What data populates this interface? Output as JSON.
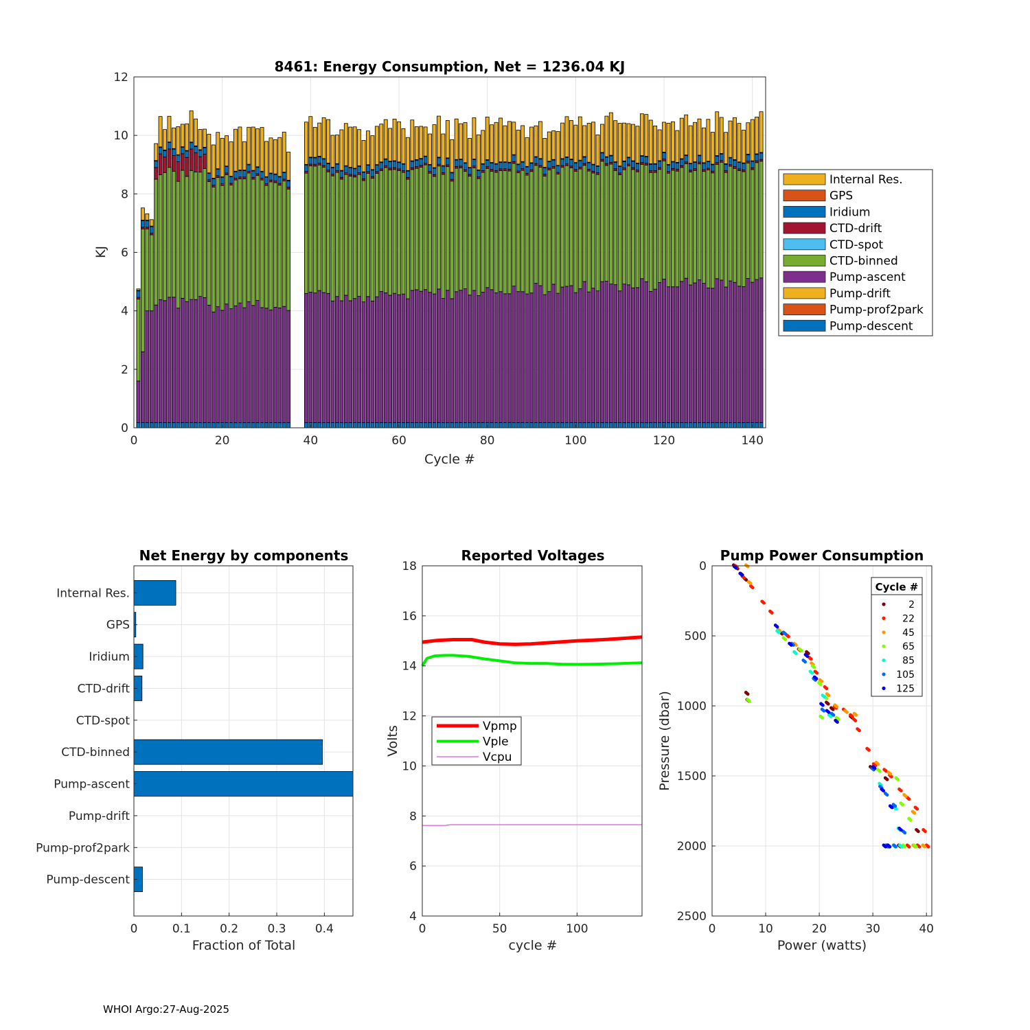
{
  "footer": "WHOI Argo:27-Aug-2025",
  "colors": {
    "internal_res": "#EDB120",
    "gps": "#D95319",
    "iridium": "#0072BD",
    "ctd_drift": "#A2142F",
    "ctd_spot": "#4DBEEE",
    "ctd_binned": "#77AC30",
    "pump_ascent": "#7E2F8E",
    "pump_drift": "#EDB120",
    "pump_prof2park": "#D95319",
    "pump_descent": "#0072BD",
    "vpmp": "#FF0000",
    "vple": "#00EE00",
    "vcpu": "#CC33CC",
    "hbar": "#0072BD"
  },
  "chart_data": [
    {
      "id": "energy",
      "type": "bar",
      "stacked": true,
      "title": "8461: Energy Consumption,  Net = 1236.04 KJ",
      "xlabel": "Cycle #",
      "ylabel": "KJ",
      "xlim": [
        0,
        143
      ],
      "ylim": [
        0,
        12
      ],
      "xticks": [
        0,
        20,
        40,
        60,
        80,
        100,
        120,
        140
      ],
      "yticks": [
        0,
        2,
        4,
        6,
        8,
        10,
        12
      ],
      "grid": true,
      "legend_position": "right",
      "legend": [
        "Internal Res.",
        "GPS",
        "Iridium",
        "CTD-drift",
        "CTD-spot",
        "CTD-binned",
        "Pump-ascent",
        "Pump-drift",
        "Pump-prof2park",
        "Pump-descent"
      ],
      "stack_order_bottom_to_top": [
        "Pump-descent",
        "Pump-prof2park",
        "Pump-drift",
        "Pump-ascent",
        "CTD-binned",
        "CTD-spot",
        "CTD-drift",
        "Iridium",
        "GPS",
        "Internal Res."
      ],
      "missing_cycles": [
        36,
        37,
        38
      ],
      "bar_value_overrides": {
        "1": {
          "total": 4.8,
          "ascent": 1.6,
          "ctd": 2.8
        },
        "2": {
          "total": 7.7,
          "ascent": 2.6,
          "ctd": 4.2
        },
        "3": {
          "total": 7.5,
          "ascent": 4.0,
          "ctd": 2.8
        },
        "4": {
          "total": 7.3,
          "ascent": 4.0,
          "ctd": 2.6
        },
        "5": {
          "total": 9.9,
          "ascent": 4.2,
          "ctd": 4.3,
          "drift": 0.4
        }
      },
      "totals_range": [
        9.3,
        10.6
      ],
      "ascent_range": [
        4.1,
        5.3
      ],
      "ctd_binned_range": [
        3.7,
        4.4
      ],
      "ctd_drift_cycles_5_16": [
        0.4,
        0.7
      ],
      "descent_per_cycle": 0.18
    },
    {
      "id": "components",
      "type": "bar",
      "orientation": "horizontal",
      "title": "Net Energy by components",
      "xlabel": "Fraction of Total",
      "xlim": [
        0,
        0.46
      ],
      "xticks": [
        0,
        0.1,
        0.2,
        0.3,
        0.4
      ],
      "xtick_labels": [
        "0",
        "0.1",
        "0.2",
        "0.3",
        "0.4"
      ],
      "grid": true,
      "categories": [
        "Internal Res.",
        "GPS",
        "Iridium",
        "CTD-drift",
        "CTD-spot",
        "CTD-binned",
        "Pump-ascent",
        "Pump-drift",
        "Pump-prof2park",
        "Pump-descent"
      ],
      "values": [
        0.088,
        0.004,
        0.019,
        0.017,
        0.0,
        0.396,
        0.472,
        0.0,
        0.0,
        0.018
      ]
    },
    {
      "id": "voltages",
      "type": "line",
      "title": "Reported Voltages",
      "xlabel": "cycle #",
      "ylabel": "Volts",
      "xlim": [
        0,
        142
      ],
      "ylim": [
        4,
        18
      ],
      "xticks": [
        0,
        50,
        100
      ],
      "yticks": [
        4,
        6,
        8,
        10,
        12,
        14,
        16,
        18
      ],
      "grid": true,
      "legend_position": "left",
      "series": [
        {
          "name": "Vpmp",
          "x": [
            0,
            10,
            20,
            32,
            40,
            50,
            60,
            70,
            80,
            90,
            100,
            110,
            120,
            130,
            142
          ],
          "y": [
            14.95,
            15.02,
            15.05,
            15.05,
            14.95,
            14.88,
            14.86,
            14.88,
            14.92,
            14.96,
            15.0,
            15.03,
            15.06,
            15.1,
            15.15
          ]
        },
        {
          "name": "Vple",
          "x": [
            0,
            3,
            8,
            15,
            20,
            30,
            40,
            50,
            60,
            70,
            80,
            90,
            100,
            110,
            120,
            130,
            142
          ],
          "y": [
            14.0,
            14.3,
            14.4,
            14.42,
            14.42,
            14.38,
            14.28,
            14.2,
            14.12,
            14.1,
            14.1,
            14.07,
            14.06,
            14.07,
            14.08,
            14.1,
            14.12
          ]
        },
        {
          "name": "Vcpu",
          "x": [
            0,
            15,
            18,
            60,
            100,
            142
          ],
          "y": [
            7.62,
            7.62,
            7.65,
            7.65,
            7.65,
            7.65
          ]
        }
      ]
    },
    {
      "id": "pump",
      "type": "scatter",
      "title": "Pump Power Consumption",
      "xlabel": "Power (watts)",
      "ylabel": "Pressure (dbar)",
      "xlim": [
        0,
        41
      ],
      "ylim": [
        0,
        2500
      ],
      "y_reversed": true,
      "xticks": [
        0,
        10,
        20,
        30,
        40
      ],
      "yticks": [
        0,
        500,
        1000,
        1500,
        2000,
        2500
      ],
      "grid": true,
      "legend_title": "Cycle #",
      "legend": [
        "2",
        "22",
        "45",
        "65",
        "85",
        "105",
        "125"
      ],
      "legend_colors": [
        "#7F0000",
        "#FF1A00",
        "#FF9900",
        "#80FF00",
        "#00FFCC",
        "#0066FF",
        "#0000E6"
      ],
      "series": [
        {
          "name": "2",
          "color": "#7F0000",
          "points": [
            [
              4.2,
              0
            ],
            [
              4.6,
              15
            ],
            [
              5.5,
              60
            ],
            [
              6.2,
              95
            ],
            [
              6.5,
              910
            ],
            [
              6.7,
              960
            ],
            [
              12.9,
              480
            ],
            [
              17.8,
              620
            ],
            [
              21.5,
              980
            ],
            [
              22.4,
              1020
            ],
            [
              26.0,
              1080
            ],
            [
              29.7,
              1440
            ],
            [
              32.5,
              1520
            ],
            [
              38.3,
              1890
            ],
            [
              32.8,
              2000
            ],
            [
              35.0,
              2000
            ]
          ]
        },
        {
          "name": "22",
          "color": "#FF1A00",
          "points": [
            [
              4.5,
              5
            ],
            [
              5.8,
              80
            ],
            [
              7.4,
              150
            ],
            [
              9.5,
              260
            ],
            [
              11.0,
              330
            ],
            [
              14.1,
              500
            ],
            [
              16.3,
              600
            ],
            [
              18.3,
              660
            ],
            [
              19.4,
              760
            ],
            [
              21.2,
              870
            ],
            [
              23.0,
              1010
            ],
            [
              24.7,
              1030
            ],
            [
              26.0,
              1070
            ],
            [
              26.6,
              1100
            ],
            [
              27.3,
              1170
            ],
            [
              29.1,
              1310
            ],
            [
              30.3,
              1420
            ],
            [
              32.3,
              1460
            ],
            [
              33.3,
              1500
            ],
            [
              35.1,
              1600
            ],
            [
              36.6,
              1660
            ],
            [
              38.1,
              1730
            ],
            [
              39.6,
              1890
            ],
            [
              40.2,
              2000
            ],
            [
              38.5,
              2000
            ],
            [
              36.6,
              2000
            ]
          ]
        },
        {
          "name": "45",
          "color": "#FF9900",
          "points": [
            [
              6.5,
              0
            ],
            [
              7.0,
              120
            ],
            [
              12.5,
              460
            ],
            [
              15.5,
              560
            ],
            [
              18.7,
              700
            ],
            [
              20.3,
              820
            ],
            [
              21.6,
              920
            ],
            [
              23.1,
              1000
            ],
            [
              25.0,
              1040
            ],
            [
              26.7,
              1060
            ],
            [
              30.8,
              1410
            ],
            [
              33.1,
              1480
            ],
            [
              36.0,
              1640
            ],
            [
              37.6,
              1760
            ],
            [
              39.5,
              2000
            ],
            [
              37.7,
              2000
            ]
          ]
        },
        {
          "name": "65",
          "color": "#80FF00",
          "points": [
            [
              6.8,
              960
            ],
            [
              13.5,
              520
            ],
            [
              16.5,
              600
            ],
            [
              18.9,
              720
            ],
            [
              20.1,
              840
            ],
            [
              21.2,
              940
            ],
            [
              23.4,
              1090
            ],
            [
              20.4,
              1080
            ],
            [
              31.1,
              1460
            ],
            [
              34.5,
              1520
            ],
            [
              35.4,
              1700
            ],
            [
              36.9,
              1810
            ],
            [
              37.9,
              2000
            ],
            [
              35.8,
              2000
            ]
          ]
        },
        {
          "name": "85",
          "color": "#00FFCC",
          "points": [
            [
              12.3,
              470
            ],
            [
              15.5,
              620
            ],
            [
              18.5,
              760
            ],
            [
              20.8,
              930
            ],
            [
              22.0,
              1070
            ],
            [
              31.4,
              1560
            ],
            [
              34.2,
              1730
            ],
            [
              34.9,
              1880
            ],
            [
              35.2,
              2000
            ],
            [
              34.0,
              2000
            ]
          ]
        },
        {
          "name": "105",
          "color": "#0066FF",
          "points": [
            [
              13.5,
              480
            ],
            [
              15.0,
              560
            ],
            [
              17.2,
              680
            ],
            [
              19.1,
              810
            ],
            [
              20.7,
              1030
            ],
            [
              22.5,
              1060
            ],
            [
              30.0,
              1450
            ],
            [
              31.5,
              1580
            ],
            [
              32.5,
              1630
            ],
            [
              34.0,
              1710
            ],
            [
              35.8,
              1900
            ],
            [
              34.1,
              2000
            ],
            [
              32.6,
              2000
            ]
          ]
        },
        {
          "name": "125",
          "color": "#0000E6",
          "points": [
            [
              4.3,
              10
            ],
            [
              5.4,
              60
            ],
            [
              12.0,
              430
            ],
            [
              14.6,
              560
            ],
            [
              17.6,
              640
            ],
            [
              19.3,
              800
            ],
            [
              20.5,
              990
            ],
            [
              21.6,
              1040
            ],
            [
              23.2,
              1110
            ],
            [
              30.2,
              1440
            ],
            [
              31.8,
              1600
            ],
            [
              33.4,
              1720
            ],
            [
              35.1,
              1880
            ],
            [
              33.0,
              2000
            ],
            [
              32.2,
              2000
            ]
          ]
        }
      ]
    }
  ]
}
